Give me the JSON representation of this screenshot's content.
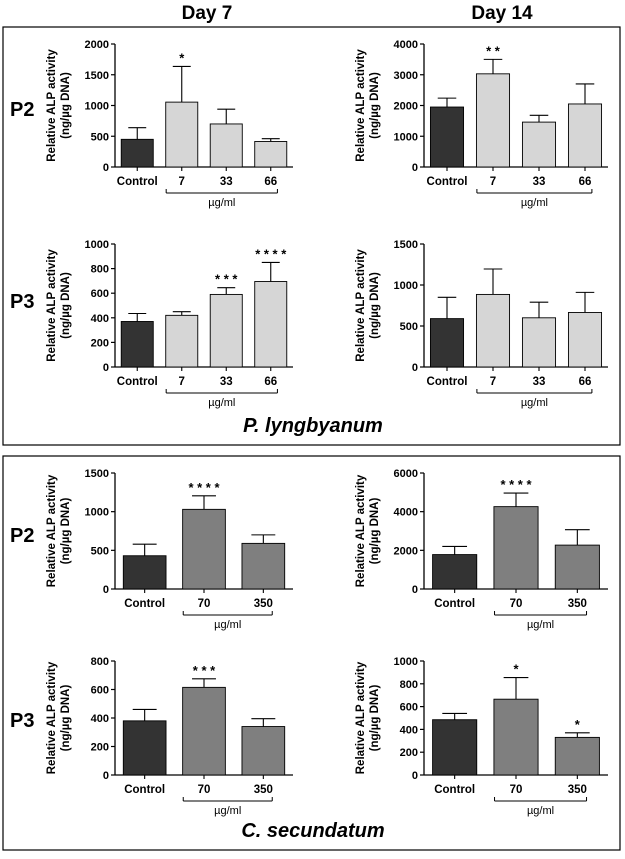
{
  "header": {
    "day7": "Day 7",
    "day14": "Day 14"
  },
  "panels": [
    {
      "species": "P. lyngbyanum",
      "rows": [
        "P2",
        "P3"
      ]
    },
    {
      "species": "C. secundatum",
      "rows": [
        "P2",
        "P3"
      ]
    }
  ],
  "ylabel_line1": "Relative ALP activity",
  "ylabel_line2": "(ng/µg DNA)",
  "unit": "µg/ml",
  "colors": {
    "control": "#333333",
    "plyngbyanum": "#d6d6d6",
    "csecundatum": "#7f7f7f",
    "axis": "#000000"
  },
  "chart_data": [
    {
      "id": "pl-p2-d7",
      "type": "bar",
      "panel": "P. lyngbyanum",
      "row": "P2",
      "day": "Day 7",
      "categories": [
        "Control",
        "7",
        "33",
        "66"
      ],
      "values": [
        450,
        1055,
        700,
        415
      ],
      "errors": [
        190,
        580,
        240,
        45
      ],
      "sig": [
        "",
        "*",
        "",
        ""
      ],
      "ylim": [
        0,
        2000
      ],
      "yticks": [
        0,
        500,
        1000,
        1500,
        2000
      ],
      "xlabel": "µg/ml",
      "ylabel": "Relative ALP activity (ng/µg DNA)"
    },
    {
      "id": "pl-p2-d14",
      "type": "bar",
      "panel": "P. lyngbyanum",
      "row": "P2",
      "day": "Day 14",
      "categories": [
        "Control",
        "7",
        "33",
        "66"
      ],
      "values": [
        1950,
        3030,
        1460,
        2050
      ],
      "errors": [
        290,
        470,
        220,
        650
      ],
      "sig": [
        "",
        "**",
        "",
        ""
      ],
      "ylim": [
        0,
        4000
      ],
      "yticks": [
        0,
        1000,
        2000,
        3000,
        4000
      ],
      "xlabel": "µg/ml",
      "ylabel": "Relative ALP activity (ng/µg DNA)"
    },
    {
      "id": "pl-p3-d7",
      "type": "bar",
      "panel": "P. lyngbyanum",
      "row": "P3",
      "day": "Day 7",
      "categories": [
        "Control",
        "7",
        "33",
        "66"
      ],
      "values": [
        370,
        420,
        590,
        695
      ],
      "errors": [
        65,
        30,
        55,
        155
      ],
      "sig": [
        "",
        "",
        "***",
        "****"
      ],
      "ylim": [
        0,
        1000
      ],
      "yticks": [
        0,
        200,
        400,
        600,
        800,
        1000
      ],
      "xlabel": "µg/ml",
      "ylabel": "Relative ALP activity (ng/µg DNA)"
    },
    {
      "id": "pl-p3-d14",
      "type": "bar",
      "panel": "P. lyngbyanum",
      "row": "P3",
      "day": "Day 14",
      "categories": [
        "Control",
        "7",
        "33",
        "66"
      ],
      "values": [
        590,
        885,
        600,
        665
      ],
      "errors": [
        260,
        310,
        190,
        245
      ],
      "sig": [
        "",
        "",
        "",
        ""
      ],
      "ylim": [
        0,
        1500
      ],
      "yticks": [
        0,
        500,
        1000,
        1500
      ],
      "xlabel": "µg/ml",
      "ylabel": "Relative ALP activity (ng/µg DNA)"
    },
    {
      "id": "cs-p2-d7",
      "type": "bar",
      "panel": "C. secundatum",
      "row": "P2",
      "day": "Day 7",
      "categories": [
        "Control",
        "70",
        "350"
      ],
      "values": [
        430,
        1030,
        590
      ],
      "errors": [
        150,
        175,
        110
      ],
      "sig": [
        "",
        "****",
        ""
      ],
      "ylim": [
        0,
        1500
      ],
      "yticks": [
        0,
        500,
        1000,
        1500
      ],
      "xlabel": "µg/ml",
      "ylabel": "Relative ALP activity (ng/µg DNA)"
    },
    {
      "id": "cs-p2-d14",
      "type": "bar",
      "panel": "C. secundatum",
      "row": "P2",
      "day": "Day 14",
      "categories": [
        "Control",
        "70",
        "350"
      ],
      "values": [
        1780,
        4260,
        2270
      ],
      "errors": [
        420,
        700,
        800
      ],
      "sig": [
        "",
        "****",
        ""
      ],
      "ylim": [
        0,
        6000
      ],
      "yticks": [
        0,
        2000,
        4000,
        6000
      ],
      "xlabel": "µg/ml",
      "ylabel": "Relative ALP activity (ng/µg DNA)"
    },
    {
      "id": "cs-p3-d7",
      "type": "bar",
      "panel": "C. secundatum",
      "row": "P3",
      "day": "Day 7",
      "categories": [
        "Control",
        "70",
        "350"
      ],
      "values": [
        380,
        615,
        340
      ],
      "errors": [
        80,
        60,
        55
      ],
      "sig": [
        "",
        "***",
        ""
      ],
      "ylim": [
        0,
        800
      ],
      "yticks": [
        0,
        200,
        400,
        600,
        800
      ],
      "xlabel": "µg/ml",
      "ylabel": "Relative ALP activity (ng/µg DNA)"
    },
    {
      "id": "cs-p3-d14",
      "type": "bar",
      "panel": "C. secundatum",
      "row": "P3",
      "day": "Day 14",
      "categories": [
        "Control",
        "70",
        "350"
      ],
      "values": [
        485,
        665,
        330
      ],
      "errors": [
        55,
        190,
        40
      ],
      "sig": [
        "",
        "*",
        "*"
      ],
      "ylim": [
        0,
        1000
      ],
      "yticks": [
        0,
        200,
        400,
        600,
        800,
        1000
      ],
      "xlabel": "µg/ml",
      "ylabel": "Relative ALP activity (ng/µg DNA)"
    }
  ]
}
